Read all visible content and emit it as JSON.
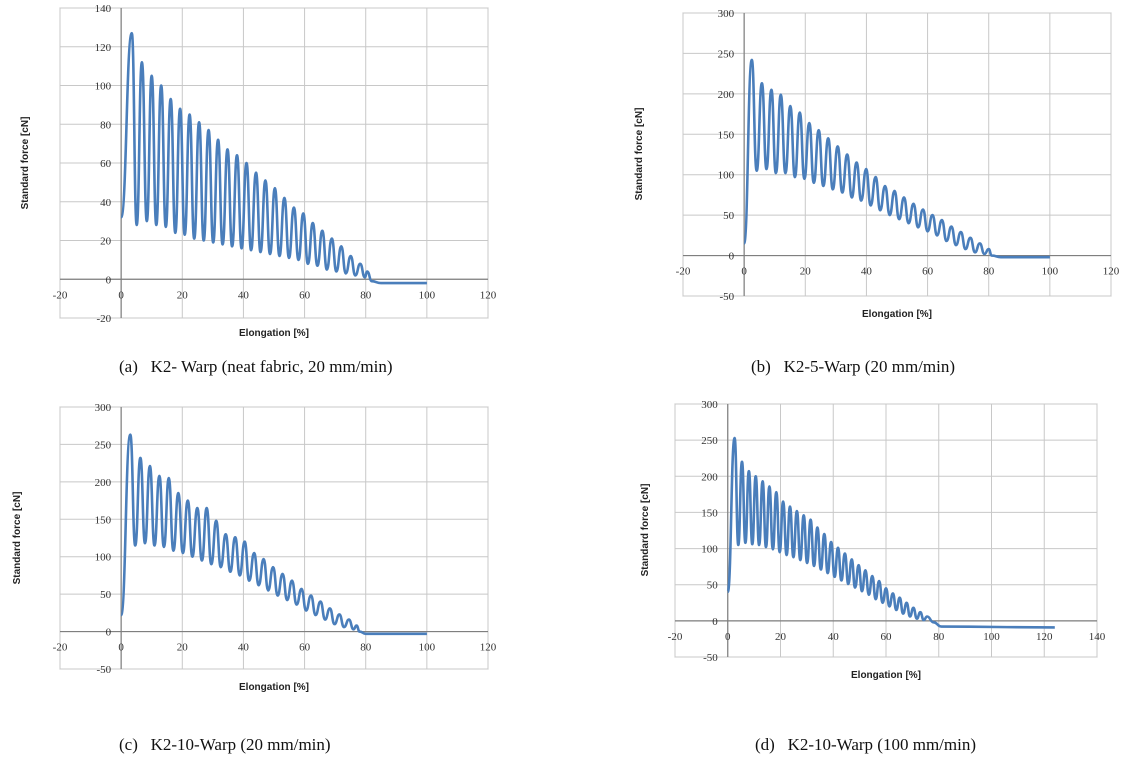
{
  "chart_data": [
    {
      "type": "line",
      "caption": "(a)   K2- Warp (neat fabric, 20 mm/min)",
      "xlabel": "Elongation [%]",
      "ylabel": "Standard force [cN]",
      "xlim": [
        -20,
        120
      ],
      "ylim": [
        -20,
        140
      ],
      "xticks": [
        -20,
        0,
        20,
        40,
        60,
        80,
        100,
        120
      ],
      "yticks": [
        -20,
        0,
        20,
        40,
        60,
        80,
        100,
        120,
        140
      ],
      "grid": true,
      "color": "#4a7ebb",
      "series": [
        {
          "start": [
            0,
            32
          ],
          "peaks": [
            [
              3.5,
              127
            ],
            [
              6.8,
              112
            ],
            [
              10.0,
              105
            ],
            [
              13.1,
              100
            ],
            [
              16.2,
              93
            ],
            [
              19.3,
              88
            ],
            [
              22.4,
              85
            ],
            [
              25.5,
              81
            ],
            [
              28.6,
              77
            ],
            [
              31.7,
              72
            ],
            [
              34.8,
              67
            ],
            [
              37.9,
              64
            ],
            [
              41.0,
              60
            ],
            [
              44.1,
              55
            ],
            [
              47.2,
              51
            ],
            [
              50.3,
              47
            ],
            [
              53.4,
              42
            ],
            [
              56.5,
              37
            ],
            [
              59.6,
              34
            ],
            [
              62.7,
              29
            ],
            [
              65.8,
              25
            ],
            [
              68.9,
              21
            ],
            [
              72.0,
              17
            ],
            [
              75.1,
              12
            ],
            [
              78.2,
              8
            ],
            [
              80.5,
              4
            ]
          ],
          "troughs": [
            [
              5.1,
              28
            ],
            [
              8.4,
              30
            ],
            [
              11.5,
              28
            ],
            [
              14.6,
              27
            ],
            [
              17.7,
              24
            ],
            [
              20.8,
              23
            ],
            [
              23.9,
              21
            ],
            [
              27.0,
              20
            ],
            [
              30.1,
              19
            ],
            [
              33.2,
              18
            ],
            [
              36.3,
              17
            ],
            [
              39.4,
              16
            ],
            [
              42.5,
              15
            ],
            [
              45.6,
              14
            ],
            [
              48.7,
              13
            ],
            [
              51.8,
              12
            ],
            [
              54.9,
              11
            ],
            [
              58.0,
              10
            ],
            [
              61.1,
              8
            ],
            [
              64.2,
              7
            ],
            [
              67.3,
              5
            ],
            [
              70.4,
              4
            ],
            [
              73.5,
              3
            ],
            [
              76.6,
              2
            ],
            [
              79.7,
              1
            ]
          ],
          "tail": [
            [
              82,
              -1
            ],
            [
              85,
              -2
            ],
            [
              100,
              -2
            ]
          ]
        }
      ]
    },
    {
      "type": "line",
      "caption": "(b)   K2-5-Warp (20 mm/min)",
      "xlabel": "Elongation [%]",
      "ylabel": "Standard force [cN]",
      "xlim": [
        -20,
        120
      ],
      "ylim": [
        -50,
        300
      ],
      "xticks": [
        -20,
        0,
        20,
        40,
        60,
        80,
        100,
        120
      ],
      "yticks": [
        -50,
        0,
        50,
        100,
        150,
        200,
        250,
        300
      ],
      "grid": true,
      "color": "#4a7ebb",
      "series": [
        {
          "start": [
            0,
            15
          ],
          "peaks": [
            [
              2.5,
              242
            ],
            [
              5.8,
              213
            ],
            [
              8.9,
              205
            ],
            [
              12.0,
              199
            ],
            [
              15.1,
              185
            ],
            [
              18.2,
              177
            ],
            [
              21.3,
              164
            ],
            [
              24.4,
              155
            ],
            [
              27.5,
              145
            ],
            [
              30.6,
              135
            ],
            [
              33.7,
              125
            ],
            [
              36.8,
              115
            ],
            [
              39.9,
              107
            ],
            [
              43.0,
              97
            ],
            [
              46.1,
              86
            ],
            [
              49.2,
              80
            ],
            [
              52.3,
              72
            ],
            [
              55.4,
              64
            ],
            [
              58.5,
              57
            ],
            [
              61.6,
              50
            ],
            [
              64.7,
              44
            ],
            [
              67.8,
              36
            ],
            [
              70.9,
              29
            ],
            [
              74.0,
              22
            ],
            [
              77.1,
              15
            ],
            [
              80.0,
              8
            ]
          ],
          "troughs": [
            [
              4.1,
              105
            ],
            [
              7.3,
              107
            ],
            [
              10.4,
              102
            ],
            [
              13.5,
              102
            ],
            [
              16.6,
              97
            ],
            [
              19.7,
              95
            ],
            [
              22.8,
              90
            ],
            [
              25.9,
              86
            ],
            [
              29.0,
              82
            ],
            [
              32.1,
              78
            ],
            [
              35.2,
              72
            ],
            [
              38.3,
              68
            ],
            [
              41.4,
              62
            ],
            [
              44.5,
              56
            ],
            [
              47.6,
              50
            ],
            [
              50.7,
              45
            ],
            [
              53.8,
              40
            ],
            [
              56.9,
              35
            ],
            [
              60.0,
              30
            ],
            [
              63.1,
              25
            ],
            [
              66.2,
              18
            ],
            [
              69.3,
              13
            ],
            [
              72.4,
              8
            ],
            [
              75.5,
              4
            ],
            [
              78.6,
              2
            ]
          ],
          "tail": [
            [
              81,
              0
            ],
            [
              84,
              -2
            ],
            [
              100,
              -2
            ]
          ]
        }
      ]
    },
    {
      "type": "line",
      "caption": "(c)   K2-10-Warp (20 mm/min)",
      "xlabel": "Elongation [%]",
      "ylabel": "Standard force [cN]",
      "xlim": [
        -20,
        120
      ],
      "ylim": [
        -50,
        300
      ],
      "xticks": [
        -20,
        0,
        20,
        40,
        60,
        80,
        100,
        120
      ],
      "yticks": [
        -50,
        0,
        50,
        100,
        150,
        200,
        250,
        300
      ],
      "grid": true,
      "color": "#4a7ebb",
      "series": [
        {
          "start": [
            0,
            22
          ],
          "peaks": [
            [
              3.0,
              263
            ],
            [
              6.3,
              232
            ],
            [
              9.4,
              221
            ],
            [
              12.5,
              208
            ],
            [
              15.6,
              205
            ],
            [
              18.7,
              185
            ],
            [
              21.8,
              175
            ],
            [
              24.9,
              165
            ],
            [
              28.0,
              165
            ],
            [
              31.1,
              148
            ],
            [
              34.2,
              130
            ],
            [
              37.3,
              126
            ],
            [
              40.4,
              120
            ],
            [
              43.5,
              105
            ],
            [
              46.6,
              97
            ],
            [
              49.7,
              86
            ],
            [
              52.8,
              77
            ],
            [
              55.9,
              68
            ],
            [
              59.0,
              57
            ],
            [
              62.1,
              48
            ],
            [
              65.2,
              40
            ],
            [
              68.3,
              31
            ],
            [
              71.4,
              23
            ],
            [
              74.5,
              16
            ],
            [
              77.0,
              8
            ]
          ],
          "troughs": [
            [
              4.6,
              115
            ],
            [
              7.8,
              118
            ],
            [
              10.9,
              115
            ],
            [
              14.0,
              113
            ],
            [
              17.1,
              108
            ],
            [
              20.2,
              105
            ],
            [
              23.3,
              100
            ],
            [
              26.4,
              95
            ],
            [
              29.5,
              90
            ],
            [
              32.6,
              86
            ],
            [
              35.7,
              80
            ],
            [
              38.8,
              75
            ],
            [
              41.9,
              68
            ],
            [
              45.0,
              62
            ],
            [
              48.1,
              55
            ],
            [
              51.2,
              48
            ],
            [
              54.3,
              42
            ],
            [
              57.4,
              36
            ],
            [
              60.5,
              28
            ],
            [
              63.6,
              22
            ],
            [
              66.7,
              16
            ],
            [
              69.8,
              10
            ],
            [
              72.9,
              6
            ],
            [
              76.0,
              3
            ]
          ],
          "tail": [
            [
              78,
              0
            ],
            [
              80,
              -3
            ],
            [
              100,
              -3
            ]
          ]
        }
      ]
    },
    {
      "type": "line",
      "caption": "(d)   K2-10-Warp (100 mm/min)",
      "xlabel": "Elongation [%]",
      "ylabel": "Standard force [cN]",
      "xlim": [
        -20,
        140
      ],
      "ylim": [
        -50,
        300
      ],
      "xticks": [
        -20,
        0,
        20,
        40,
        60,
        80,
        100,
        120,
        140
      ],
      "yticks": [
        -50,
        0,
        50,
        100,
        150,
        200,
        250,
        300
      ],
      "grid": true,
      "color": "#4a7ebb",
      "series": [
        {
          "start": [
            0,
            40
          ],
          "peaks": [
            [
              2.6,
              253
            ],
            [
              5.4,
              220
            ],
            [
              8.0,
              207
            ],
            [
              10.6,
              200
            ],
            [
              13.2,
              193
            ],
            [
              15.8,
              186
            ],
            [
              18.4,
              178
            ],
            [
              21.0,
              165
            ],
            [
              23.6,
              158
            ],
            [
              26.2,
              152
            ],
            [
              28.8,
              146
            ],
            [
              31.4,
              140
            ],
            [
              34.0,
              129
            ],
            [
              36.6,
              120
            ],
            [
              39.2,
              109
            ],
            [
              41.8,
              101
            ],
            [
              44.4,
              93
            ],
            [
              47.0,
              85
            ],
            [
              49.6,
              77
            ],
            [
              52.2,
              70
            ],
            [
              54.8,
              62
            ],
            [
              57.4,
              55
            ],
            [
              60.0,
              45
            ],
            [
              62.6,
              38
            ],
            [
              65.2,
              32
            ],
            [
              67.8,
              25
            ],
            [
              70.4,
              18
            ],
            [
              73.0,
              12
            ],
            [
              75.6,
              6
            ]
          ],
          "troughs": [
            [
              4.0,
              105
            ],
            [
              6.7,
              108
            ],
            [
              9.3,
              106
            ],
            [
              11.9,
              105
            ],
            [
              14.5,
              102
            ],
            [
              17.1,
              99
            ],
            [
              19.7,
              95
            ],
            [
              22.3,
              91
            ],
            [
              24.9,
              88
            ],
            [
              27.5,
              84
            ],
            [
              30.1,
              80
            ],
            [
              32.7,
              76
            ],
            [
              35.3,
              71
            ],
            [
              37.9,
              66
            ],
            [
              40.5,
              61
            ],
            [
              43.1,
              56
            ],
            [
              45.7,
              51
            ],
            [
              48.3,
              46
            ],
            [
              50.9,
              41
            ],
            [
              53.5,
              36
            ],
            [
              56.1,
              30
            ],
            [
              58.7,
              25
            ],
            [
              61.3,
              20
            ],
            [
              63.9,
              15
            ],
            [
              66.5,
              10
            ],
            [
              69.1,
              6
            ],
            [
              71.7,
              3
            ],
            [
              74.3,
              1
            ]
          ],
          "tail": [
            [
              78,
              -2
            ],
            [
              81,
              -8
            ],
            [
              124,
              -9
            ]
          ]
        }
      ]
    }
  ]
}
